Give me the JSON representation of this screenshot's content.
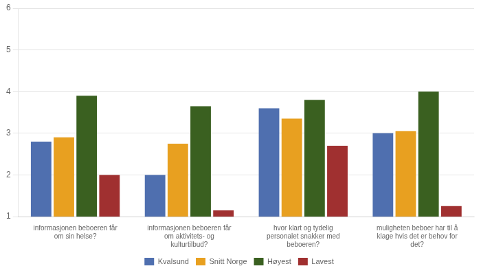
{
  "chart_data": {
    "type": "bar",
    "categories": [
      "informasjonen beboeren får\nom sin helse?",
      "informasjonen beboeren får\nom aktivitets- og\nkulturtilbud?",
      "hvor klart og tydelig\npersonalet snakker med\nbeboeren?",
      "muligheten beboer har til å\nklage hvis det er behov for\ndet?"
    ],
    "series": [
      {
        "name": "Kvalsund",
        "color": "#4f6faf",
        "values": [
          2.8,
          2.0,
          3.6,
          3.0
        ]
      },
      {
        "name": "Snitt Norge",
        "color": "#e8a020",
        "values": [
          2.9,
          2.75,
          3.35,
          3.05
        ]
      },
      {
        "name": "Høyest",
        "color": "#3a6020",
        "values": [
          3.9,
          3.65,
          3.8,
          4.0
        ]
      },
      {
        "name": "Lavest",
        "color": "#a03030",
        "values": [
          2.0,
          1.15,
          2.7,
          1.25
        ]
      }
    ],
    "ylim": [
      1,
      6
    ],
    "yticks": [
      1,
      2,
      3,
      4,
      5,
      6
    ],
    "grid": true,
    "legend": "bottom"
  }
}
